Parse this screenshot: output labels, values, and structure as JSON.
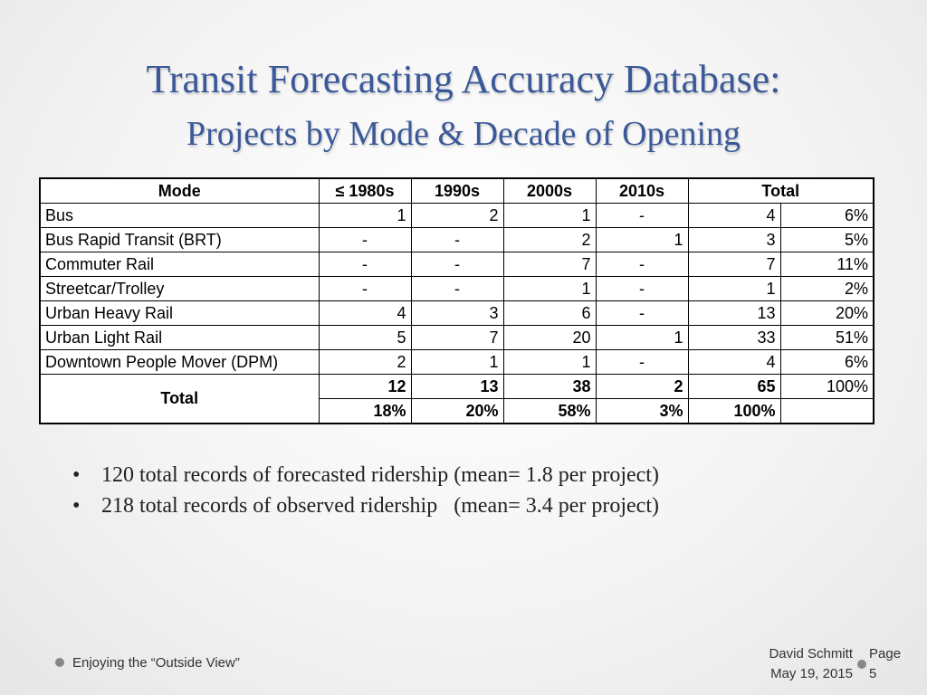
{
  "slide": {
    "title": "Transit Forecasting Accuracy Database:",
    "subtitle": "Projects by Mode & Decade of Opening"
  },
  "table": {
    "headers": [
      "Mode",
      "≤ 1980s",
      "1990s",
      "2000s",
      "2010s",
      "Total"
    ],
    "rows": [
      {
        "mode": "Bus",
        "c1980": "1",
        "c1990": "2",
        "c2000": "1",
        "c2010": "-",
        "total": "4",
        "pct": "6%"
      },
      {
        "mode": "Bus Rapid Transit (BRT)",
        "c1980": "-",
        "c1990": "-",
        "c2000": "2",
        "c2010": "1",
        "total": "3",
        "pct": "5%"
      },
      {
        "mode": "Commuter Rail",
        "c1980": "-",
        "c1990": "-",
        "c2000": "7",
        "c2010": "-",
        "total": "7",
        "pct": "11%"
      },
      {
        "mode": "Streetcar/Trolley",
        "c1980": "-",
        "c1990": "-",
        "c2000": "1",
        "c2010": "-",
        "total": "1",
        "pct": "2%"
      },
      {
        "mode": "Urban Heavy Rail",
        "c1980": "4",
        "c1990": "3",
        "c2000": "6",
        "c2010": "-",
        "total": "13",
        "pct": "20%"
      },
      {
        "mode": "Urban Light Rail",
        "c1980": "5",
        "c1990": "7",
        "c2000": "20",
        "c2010": "1",
        "total": "33",
        "pct": "51%"
      },
      {
        "mode": "Downtown People Mover (DPM)",
        "c1980": "2",
        "c2000": "1",
        "c1990": "1",
        "c2010": "-",
        "total": "4",
        "pct": "6%"
      }
    ],
    "total_label": "Total",
    "total_counts": {
      "c1980": "12",
      "c1990": "13",
      "c2000": "38",
      "c2010": "2",
      "total": "65",
      "pct": "100%"
    },
    "total_pcts": {
      "c1980": "18%",
      "c1990": "20%",
      "c2000": "58%",
      "c2010": "3%",
      "total": "100%"
    }
  },
  "bullets": [
    "120 total records of forecasted ridership (mean= 1.8 per project)",
    "218 total records of observed ridership   (mean= 3.4 per project)"
  ],
  "footer": {
    "left": "Enjoying the “Outside View”",
    "author": "David Schmitt",
    "date": "May 19, 2015",
    "page_label": "Page",
    "page_number": "5"
  },
  "colors": {
    "title": "#3b5998",
    "footer_dot": "#888888"
  }
}
